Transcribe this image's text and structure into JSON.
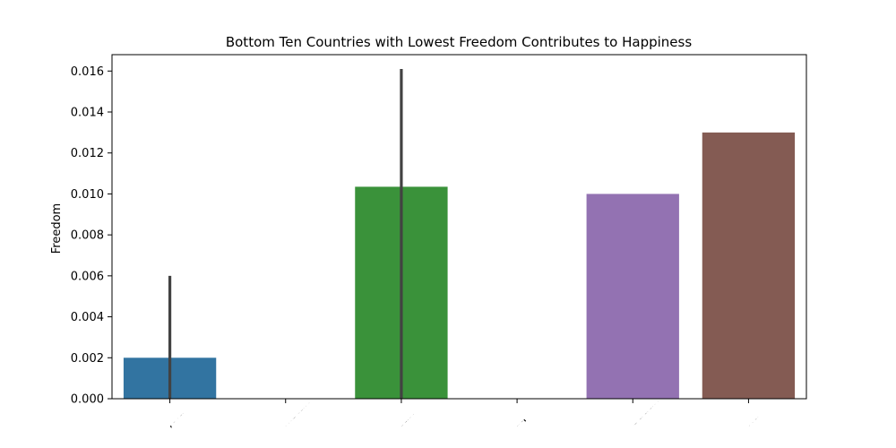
{
  "chart_data": {
    "type": "bar",
    "title": "Bottom Ten Countries with Lowest Freedom Contributes to Happiness",
    "xlabel": "",
    "ylabel": "Freedom",
    "categories": [
      "Angola",
      "Afghanistan",
      "Sudan",
      "Iraq",
      "South Sudan",
      "Syria"
    ],
    "values": [
      0.002,
      0,
      0.01035,
      0,
      0.01,
      0.013
    ],
    "error_bars": [
      {
        "low": 0,
        "high": 0.006
      },
      null,
      {
        "low": 0,
        "high": 0.0161
      },
      null,
      null,
      null
    ],
    "colors": [
      "#3274a1",
      "#e1812c",
      "#3a923a",
      "#c03d3e",
      "#9372b2",
      "#845b53"
    ],
    "error_bar_color": "#424242",
    "ylim": [
      0,
      0.0168
    ],
    "yticks": [
      "0.000",
      "0.002",
      "0.004",
      "0.006",
      "0.008",
      "0.010",
      "0.012",
      "0.014",
      "0.016"
    ],
    "ytick_values": [
      0,
      0.002,
      0.004,
      0.006,
      0.008,
      0.01,
      0.012,
      0.014,
      0.016
    ],
    "grid": false,
    "legend": "none"
  }
}
